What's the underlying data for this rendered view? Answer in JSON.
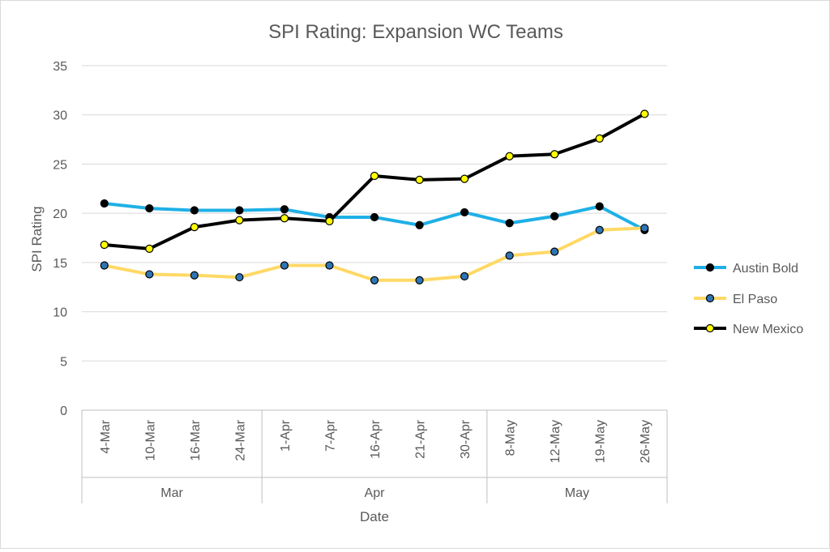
{
  "chart_data": {
    "type": "line",
    "title": "SPI Rating: Expansion WC Teams",
    "xlabel": "Date",
    "ylabel": "SPI Rating",
    "ylim": [
      0,
      35
    ],
    "yticks": [
      0,
      5,
      10,
      15,
      20,
      25,
      30,
      35
    ],
    "grid": true,
    "legend_position": "right",
    "categories": [
      "4-Mar",
      "10-Mar",
      "16-Mar",
      "24-Mar",
      "1-Apr",
      "7-Apr",
      "16-Apr",
      "21-Apr",
      "30-Apr",
      "8-May",
      "12-May",
      "19-May",
      "26-May"
    ],
    "groups": [
      {
        "label": "Mar",
        "count": 4
      },
      {
        "label": "Apr",
        "count": 5
      },
      {
        "label": "May",
        "count": 4
      }
    ],
    "series": [
      {
        "name": "Austin Bold",
        "line_color": "#1fb0e6",
        "marker_color": "#000000",
        "values": [
          21.0,
          20.5,
          20.3,
          20.3,
          20.4,
          19.6,
          19.6,
          18.8,
          20.1,
          19.0,
          19.7,
          20.7,
          18.3
        ]
      },
      {
        "name": "El Paso",
        "line_color": "#ffd966",
        "marker_color": "#2e75b6",
        "values": [
          14.7,
          13.8,
          13.7,
          13.5,
          14.7,
          14.7,
          13.2,
          13.2,
          13.6,
          15.7,
          16.1,
          18.3,
          18.5
        ]
      },
      {
        "name": "New Mexico",
        "line_color": "#000000",
        "marker_color": "#ffff00",
        "values": [
          16.8,
          16.4,
          18.6,
          19.3,
          19.5,
          19.2,
          23.8,
          23.4,
          23.5,
          25.8,
          26.0,
          27.6,
          30.1
        ]
      }
    ]
  }
}
